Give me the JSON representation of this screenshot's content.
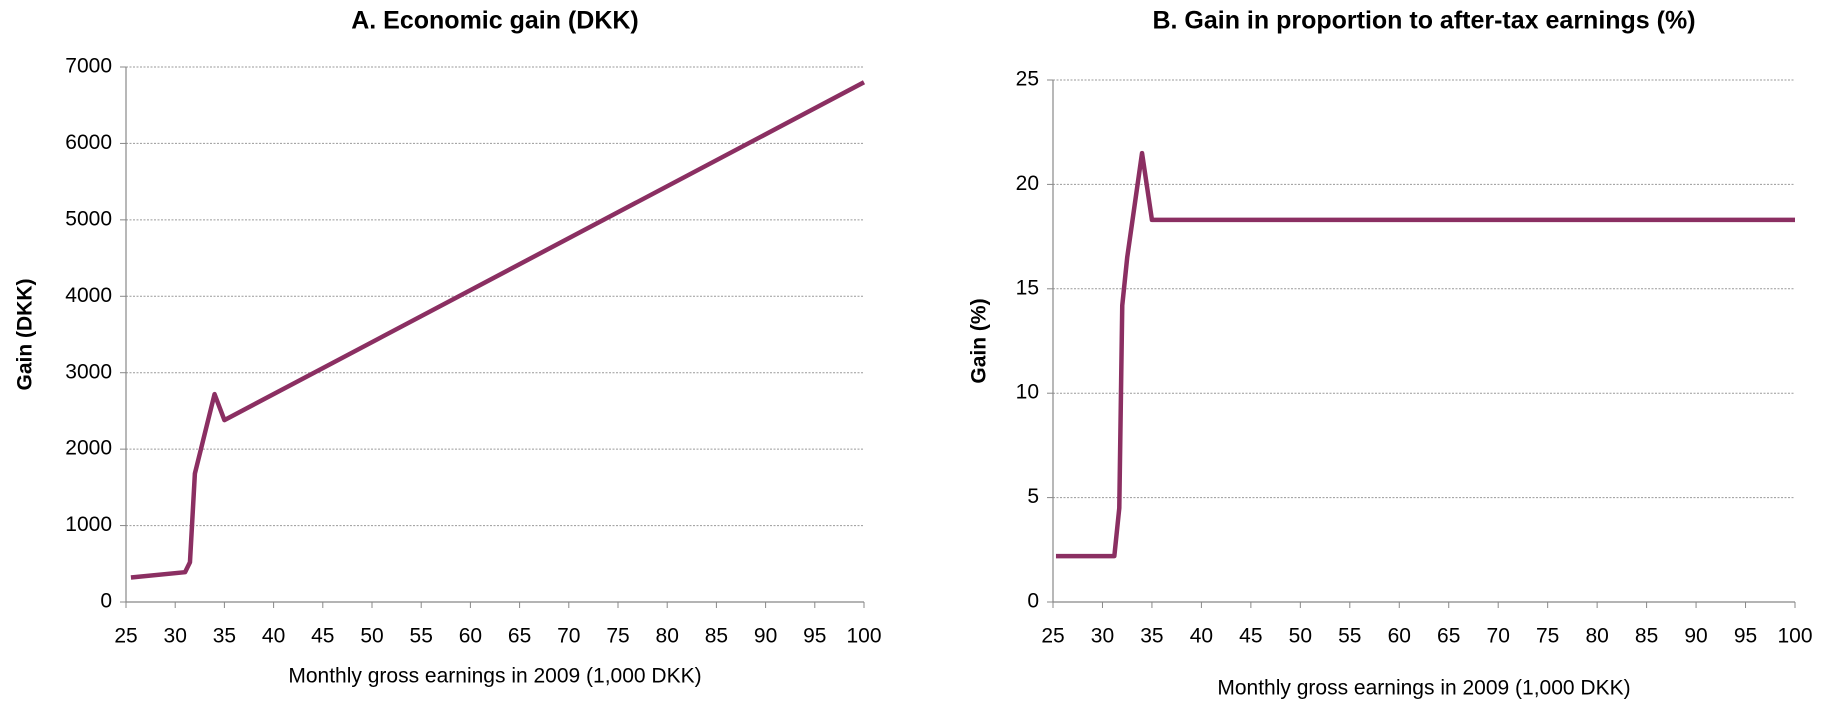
{
  "chart_data": [
    {
      "type": "line",
      "title": "A.  Economic gain (DKK)",
      "xlabel": "Monthly gross earnings in 2009 (1,000 DKK)",
      "ylabel": "Gain (DKK)",
      "x": [
        25.5,
        31,
        31.5,
        32,
        34,
        35,
        100
      ],
      "series": [
        {
          "color": "#8b2f62",
          "values": [
            320,
            390,
            520,
            1680,
            2720,
            2380,
            6800
          ]
        }
      ],
      "xlim": [
        25,
        100
      ],
      "xticks": [
        25,
        30,
        35,
        40,
        45,
        50,
        55,
        60,
        65,
        70,
        75,
        80,
        85,
        90,
        95,
        100
      ],
      "ylim": [
        0,
        7000
      ],
      "yticks": [
        0,
        1000,
        2000,
        3000,
        4000,
        5000,
        6000,
        7000
      ],
      "grid": true
    },
    {
      "type": "line",
      "title": "B.  Gain in proportion to after-tax earnings (%)",
      "xlabel": "Monthly gross earnings in 2009 (1,000 DKK)",
      "ylabel": "Gain (%)",
      "x": [
        25.3,
        31.2,
        31.7,
        32,
        32.5,
        34,
        35,
        100
      ],
      "series": [
        {
          "color": "#8b2f62",
          "values": [
            2.2,
            2.2,
            4.5,
            14.2,
            16.5,
            21.5,
            18.3,
            18.3
          ]
        }
      ],
      "xlim": [
        25,
        100
      ],
      "xticks": [
        25,
        30,
        35,
        40,
        45,
        50,
        55,
        60,
        65,
        70,
        75,
        80,
        85,
        90,
        95,
        100
      ],
      "ylim": [
        0,
        25
      ],
      "yticks": [
        0,
        5,
        10,
        15,
        20,
        25
      ],
      "grid": true
    }
  ]
}
